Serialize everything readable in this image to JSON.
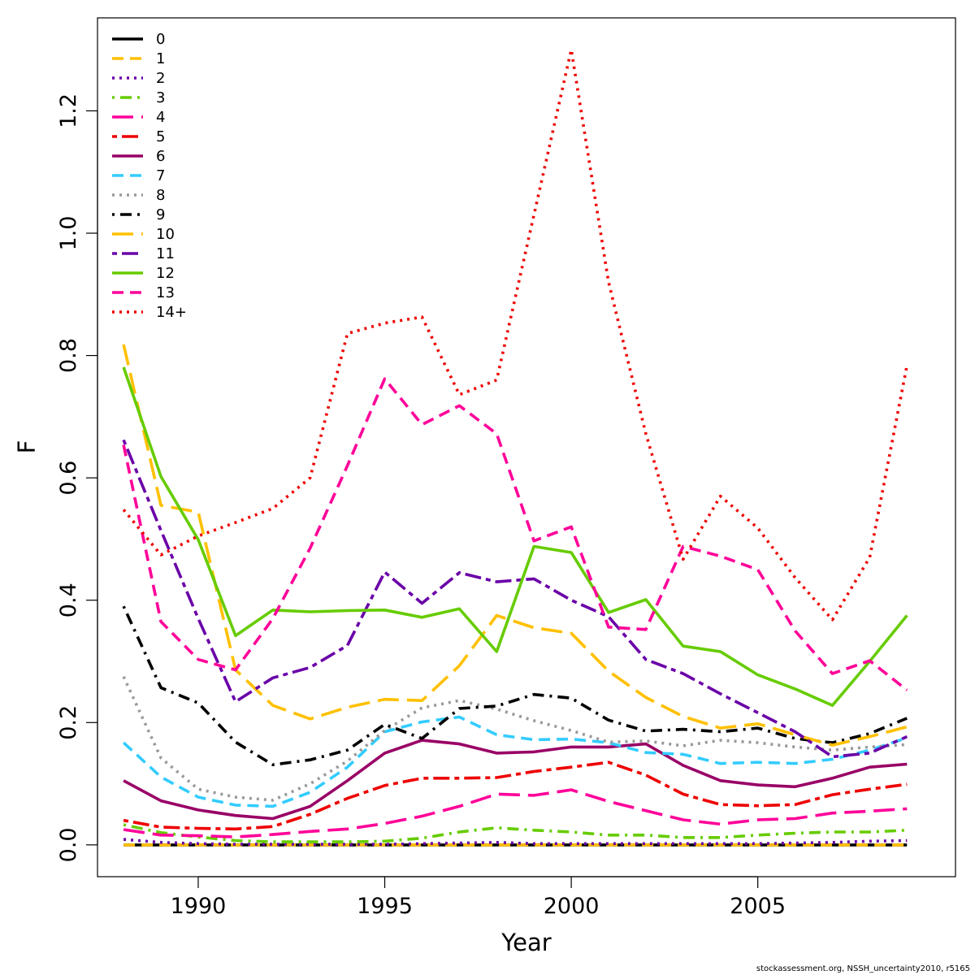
{
  "footer": "stockassessment.org, NSSH_uncertainty2010, r5165",
  "chart_data": {
    "type": "line",
    "title": "",
    "xlabel": "Year",
    "ylabel": "F",
    "xlim": [
      1987.3,
      2010.3
    ],
    "ylim": [
      -0.052,
      1.352
    ],
    "xticks": [
      1990,
      1995,
      2000,
      2005
    ],
    "yticks": [
      0.0,
      0.2,
      0.4,
      0.6,
      0.8,
      1.0,
      1.2
    ],
    "ytick_labels": [
      "0.0",
      "0.2",
      "0.4",
      "0.6",
      "0.8",
      "1.0",
      "1.2"
    ],
    "legend_position": "top-left",
    "x": [
      1988,
      1989,
      1990,
      1991,
      1992,
      1993,
      1994,
      1995,
      1996,
      1997,
      1998,
      1999,
      2000,
      2001,
      2002,
      2003,
      2004,
      2005,
      2006,
      2007,
      2008,
      2009
    ],
    "series": [
      {
        "name": "0",
        "color": "#000000",
        "dash": "solid",
        "values": [
          0,
          0,
          0,
          0,
          0,
          0,
          0,
          0,
          0,
          0,
          0,
          0,
          0,
          0,
          0,
          0,
          0,
          0,
          0,
          0,
          0,
          0
        ]
      },
      {
        "name": "1",
        "color": "#FFC000",
        "dash": "dashed",
        "values": [
          0,
          0,
          0,
          0,
          0,
          0,
          0,
          0,
          0,
          0,
          0,
          0,
          0,
          0,
          0,
          0,
          0,
          0,
          0,
          0,
          0,
          0
        ]
      },
      {
        "name": "2",
        "color": "#6A00A8",
        "dash": "dotted",
        "values": [
          0.009,
          0.004,
          0.002,
          0.001,
          0.001,
          0.001,
          0.001,
          0.001,
          0.002,
          0.003,
          0.004,
          0.002,
          0.002,
          0.002,
          0.002,
          0.002,
          0.002,
          0.002,
          0.003,
          0.004,
          0.006,
          0.007
        ]
      },
      {
        "name": "3",
        "color": "#66CC00",
        "dash": "dotdash",
        "values": [
          0.033,
          0.02,
          0.013,
          0.007,
          0.005,
          0.005,
          0.005,
          0.006,
          0.011,
          0.021,
          0.028,
          0.024,
          0.021,
          0.016,
          0.016,
          0.012,
          0.012,
          0.016,
          0.019,
          0.021,
          0.021,
          0.024
        ]
      },
      {
        "name": "4",
        "color": "#FF0099",
        "dash": "longdash",
        "values": [
          0.025,
          0.016,
          0.015,
          0.013,
          0.017,
          0.022,
          0.026,
          0.035,
          0.047,
          0.063,
          0.083,
          0.081,
          0.09,
          0.071,
          0.056,
          0.041,
          0.034,
          0.041,
          0.043,
          0.052,
          0.055,
          0.059
        ]
      },
      {
        "name": "5",
        "color": "#EE0000",
        "dash": "twodash",
        "values": [
          0.04,
          0.029,
          0.027,
          0.026,
          0.03,
          0.05,
          0.076,
          0.097,
          0.109,
          0.109,
          0.11,
          0.12,
          0.127,
          0.135,
          0.114,
          0.083,
          0.066,
          0.064,
          0.066,
          0.082,
          0.091,
          0.099
        ]
      },
      {
        "name": "6",
        "color": "#990066",
        "dash": "solid",
        "values": [
          0.105,
          0.072,
          0.057,
          0.048,
          0.043,
          0.063,
          0.105,
          0.15,
          0.171,
          0.165,
          0.15,
          0.152,
          0.16,
          0.16,
          0.165,
          0.13,
          0.105,
          0.098,
          0.095,
          0.109,
          0.127,
          0.132
        ]
      },
      {
        "name": "7",
        "color": "#33CCFF",
        "dash": "dashed",
        "values": [
          0.167,
          0.111,
          0.078,
          0.065,
          0.063,
          0.086,
          0.127,
          0.185,
          0.201,
          0.209,
          0.18,
          0.172,
          0.173,
          0.167,
          0.151,
          0.148,
          0.133,
          0.135,
          0.133,
          0.14,
          0.155,
          0.175
        ]
      },
      {
        "name": "8",
        "color": "#999999",
        "dash": "dotted",
        "values": [
          0.275,
          0.142,
          0.091,
          0.078,
          0.073,
          0.1,
          0.137,
          0.187,
          0.224,
          0.236,
          0.222,
          0.203,
          0.187,
          0.168,
          0.17,
          0.162,
          0.171,
          0.167,
          0.16,
          0.155,
          0.16,
          0.164
        ]
      },
      {
        "name": "9",
        "color": "#000000",
        "dash": "dotdash",
        "values": [
          0.39,
          0.257,
          0.232,
          0.168,
          0.131,
          0.139,
          0.155,
          0.197,
          0.174,
          0.223,
          0.227,
          0.246,
          0.24,
          0.204,
          0.186,
          0.189,
          0.185,
          0.191,
          0.174,
          0.167,
          0.182,
          0.207
        ]
      },
      {
        "name": "10",
        "color": "#FFC000",
        "dash": "longdash",
        "values": [
          0.818,
          0.555,
          0.544,
          0.286,
          0.228,
          0.206,
          0.225,
          0.238,
          0.236,
          0.293,
          0.375,
          0.355,
          0.346,
          0.284,
          0.241,
          0.21,
          0.191,
          0.198,
          0.18,
          0.163,
          0.177,
          0.193
        ]
      },
      {
        "name": "11",
        "color": "#6A00A8",
        "dash": "twodash",
        "values": [
          0.662,
          0.514,
          0.37,
          0.234,
          0.273,
          0.29,
          0.326,
          0.446,
          0.395,
          0.445,
          0.43,
          0.435,
          0.4,
          0.373,
          0.303,
          0.28,
          0.247,
          0.216,
          0.185,
          0.144,
          0.15,
          0.177
        ]
      },
      {
        "name": "12",
        "color": "#66CC00",
        "dash": "solid",
        "values": [
          0.781,
          0.602,
          0.499,
          0.342,
          0.384,
          0.381,
          0.383,
          0.384,
          0.372,
          0.386,
          0.316,
          0.488,
          0.478,
          0.38,
          0.401,
          0.325,
          0.316,
          0.278,
          0.255,
          0.228,
          0.3,
          0.375
        ]
      },
      {
        "name": "13",
        "color": "#FF0099",
        "dash": "dashed",
        "values": [
          0.654,
          0.365,
          0.303,
          0.286,
          0.37,
          0.485,
          0.62,
          0.762,
          0.687,
          0.718,
          0.672,
          0.497,
          0.52,
          0.356,
          0.352,
          0.488,
          0.472,
          0.45,
          0.35,
          0.28,
          0.301,
          0.253
        ]
      },
      {
        "name": "14+",
        "color": "#EE0000",
        "dash": "dotted",
        "values": [
          0.548,
          0.474,
          0.505,
          0.527,
          0.55,
          0.6,
          0.836,
          0.853,
          0.863,
          0.736,
          0.76,
          1.03,
          1.3,
          0.92,
          0.672,
          0.467,
          0.57,
          0.518,
          0.437,
          0.368,
          0.47,
          0.784
        ]
      }
    ]
  }
}
